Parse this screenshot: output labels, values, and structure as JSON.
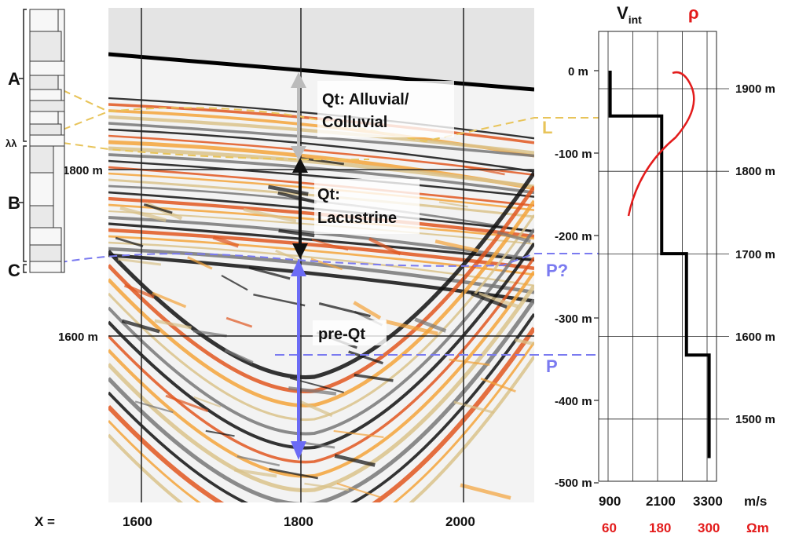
{
  "strat_column": {
    "units": [
      "A",
      "λλ",
      "B",
      "C"
    ]
  },
  "seismic": {
    "x_axis_prefix": "X =",
    "x_ticks": [
      "1600",
      "1800",
      "2000"
    ],
    "elevation_labels": [
      "1800 m",
      "1600 m"
    ],
    "annotations": {
      "alluvial_line1": "Qt: Alluvial/",
      "alluvial_line2": "Colluvial",
      "lacustrine_line1": "Qt:",
      "lacustrine_line2": "Lacustrine",
      "pre_qt": "pre-Qt"
    },
    "horizons": [
      {
        "label": "L",
        "color": "#e8c45a"
      },
      {
        "label": "P?",
        "color": "#7a7af0"
      },
      {
        "label": "P",
        "color": "#7a7af0"
      }
    ],
    "colors": {
      "black_arrow": "#111111",
      "blue_arrow": "#6b6bf5",
      "gray_arrow": "#bbbbbb",
      "surface": "#000000"
    }
  },
  "well_log": {
    "title_vint_main": "V",
    "title_vint_sub": "int",
    "title_rho": "ρ",
    "depth_labels": [
      "0 m",
      "-100 m",
      "-200 m",
      "-300 m",
      "-400 m",
      "-500 m"
    ],
    "elevation_labels": [
      "1900 m",
      "1800 m",
      "1700 m",
      "1600 m",
      "1500 m"
    ],
    "velocity_ticks": [
      "900",
      "2100",
      "3300"
    ],
    "velocity_unit": "m/s",
    "resistivity_ticks": [
      "60",
      "180",
      "300"
    ],
    "resistivity_unit": "Ωm",
    "colors": {
      "velocity": "#000000",
      "resistivity": "#e31b1b"
    },
    "velocity_profile": [
      {
        "depth_top": 0,
        "depth_bottom": -55,
        "velocity": 950
      },
      {
        "depth_top": -55,
        "depth_bottom": -222,
        "velocity": 2200
      },
      {
        "depth_top": -222,
        "depth_bottom": -345,
        "velocity": 2800
      },
      {
        "depth_top": -345,
        "depth_bottom": -470,
        "velocity": 3350
      }
    ]
  }
}
